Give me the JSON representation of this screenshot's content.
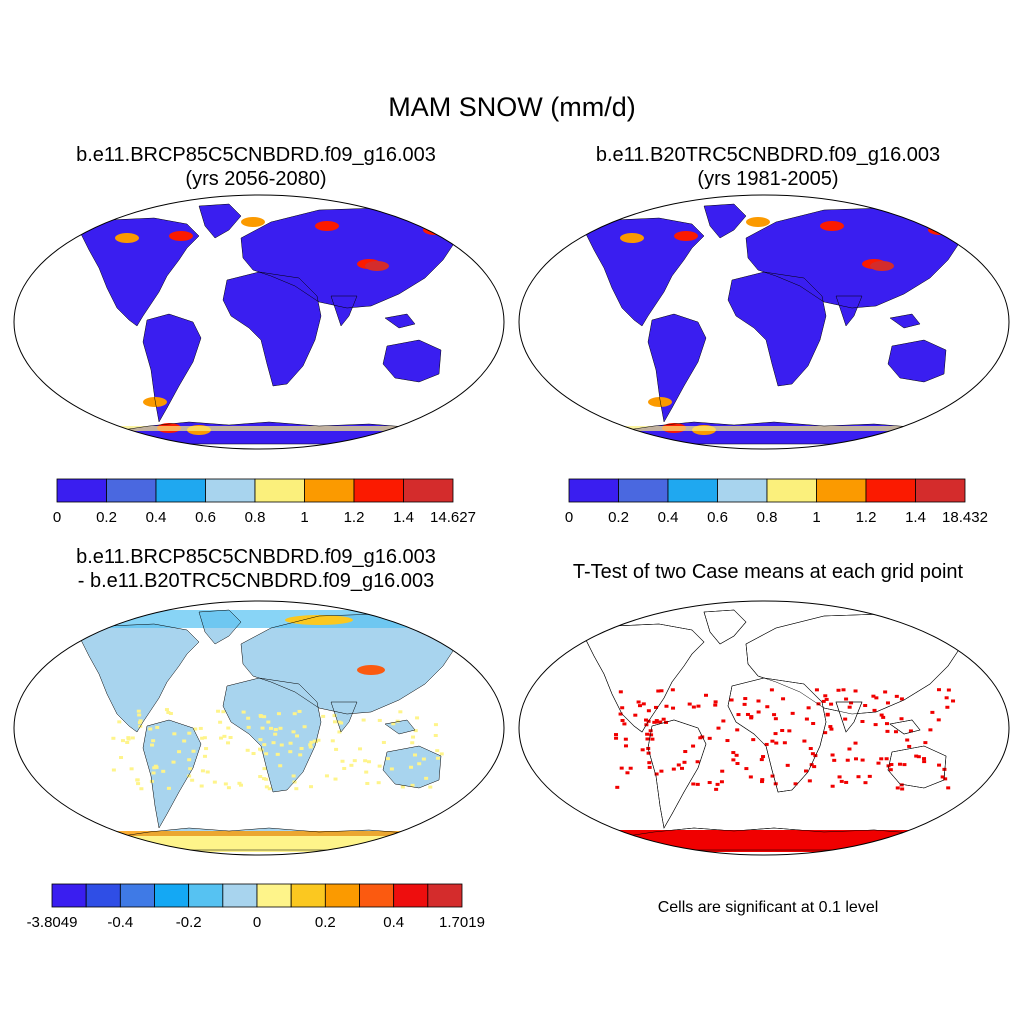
{
  "title": "MAM SNOW (mm/d)",
  "panels": [
    {
      "id": "case1",
      "title_line1": "b.e11.BRCP85C5CNBDRD.f09_g16.003",
      "title_line2": "(yrs 2056-2080)",
      "colorbar": {
        "colors": [
          "#3a1ef0",
          "#4a68e0",
          "#1fa8f0",
          "#a8d4ee",
          "#fbf07c",
          "#fb9a00",
          "#fb1a00",
          "#d42c2c"
        ],
        "labels": [
          "0",
          "0.2",
          "0.4",
          "0.6",
          "0.8",
          "1",
          "1.2",
          "1.4",
          "14.627"
        ]
      }
    },
    {
      "id": "case2",
      "title_line1": "b.e11.B20TRC5CNBDRD.f09_g16.003",
      "title_line2": "(yrs 1981-2005)",
      "colorbar": {
        "colors": [
          "#3a1ef0",
          "#4a68e0",
          "#1fa8f0",
          "#a8d4ee",
          "#fbf07c",
          "#fb9a00",
          "#fb1a00",
          "#d42c2c"
        ],
        "labels": [
          "0",
          "0.2",
          "0.4",
          "0.6",
          "0.8",
          "1",
          "1.2",
          "1.4",
          "18.432"
        ]
      }
    },
    {
      "id": "difference",
      "title_line1": "b.e11.BRCP85C5CNBDRD.f09_g16.003",
      "title_line2": "- b.e11.B20TRC5CNBDRD.f09_g16.003",
      "colorbar": {
        "colors": [
          "#3a1ef0",
          "#2f4ee6",
          "#3f7ae6",
          "#14a8f4",
          "#56c2f2",
          "#a8d4ee",
          "#fef48a",
          "#fbc820",
          "#fb9a00",
          "#fb5a10",
          "#ee0e0e",
          "#d42c2c"
        ],
        "labels": [
          "-3.8049",
          "-0.4",
          "-0.2",
          "0",
          "0.2",
          "0.4",
          "1.7019"
        ]
      }
    },
    {
      "id": "ttest",
      "title_line1": "T-Test of two Case means at each grid point",
      "note": "Cells are significant at 0.1 level",
      "significant_color": "#f00000"
    }
  ],
  "map_colors": {
    "ocean": "#ffffff",
    "tropics_low": "#3a1ef0",
    "antarctica_base": "#3a1ef0",
    "diff_background": "#a8d4ee",
    "diff_positive": "#fef48a"
  }
}
